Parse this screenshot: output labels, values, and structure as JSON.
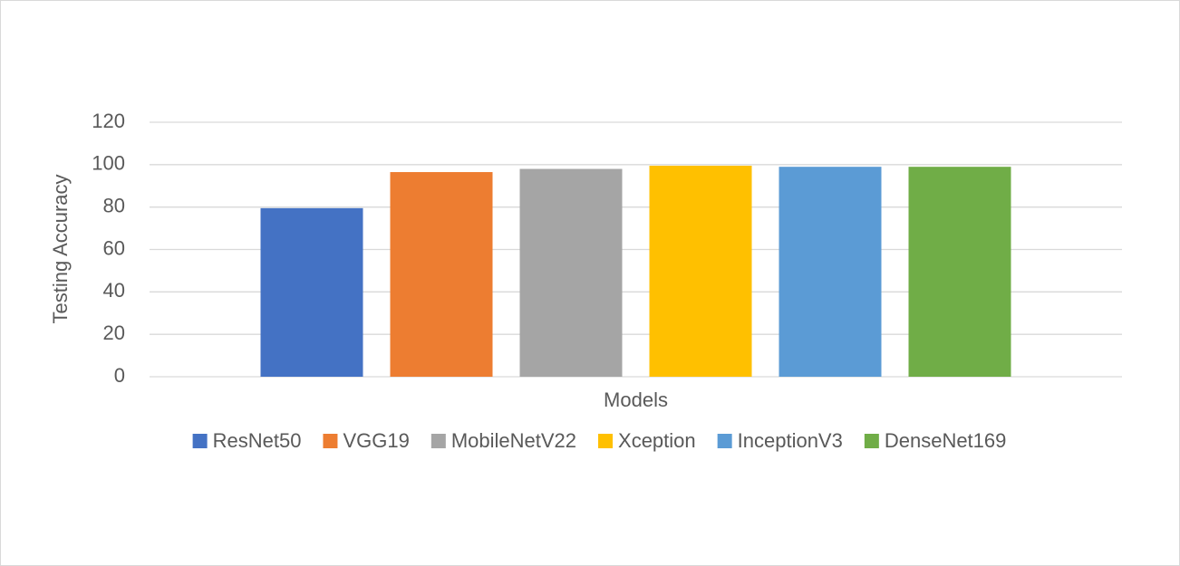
{
  "chart_data": {
    "type": "bar",
    "categories": [
      "Models"
    ],
    "y_label": "Testing Accuracy",
    "series": [
      {
        "name": "ResNet50",
        "color": "#4472c4",
        "values": [
          79.5
        ]
      },
      {
        "name": "VGG19",
        "color": "#ed7d31",
        "values": [
          96.5
        ]
      },
      {
        "name": "MobileNetV22",
        "color": "#a5a5a5",
        "values": [
          98
        ]
      },
      {
        "name": "Xception",
        "color": "#ffc000",
        "values": [
          99.5
        ]
      },
      {
        "name": "InceptionV3",
        "color": "#5b9bd5",
        "values": [
          99
        ]
      },
      {
        "name": "DenseNet169",
        "color": "#70ad47",
        "values": [
          99
        ]
      }
    ],
    "ylim": [
      0,
      120
    ],
    "yticks": [
      0,
      20,
      40,
      60,
      80,
      100,
      120
    ],
    "grid": true,
    "legend": "bottom"
  }
}
